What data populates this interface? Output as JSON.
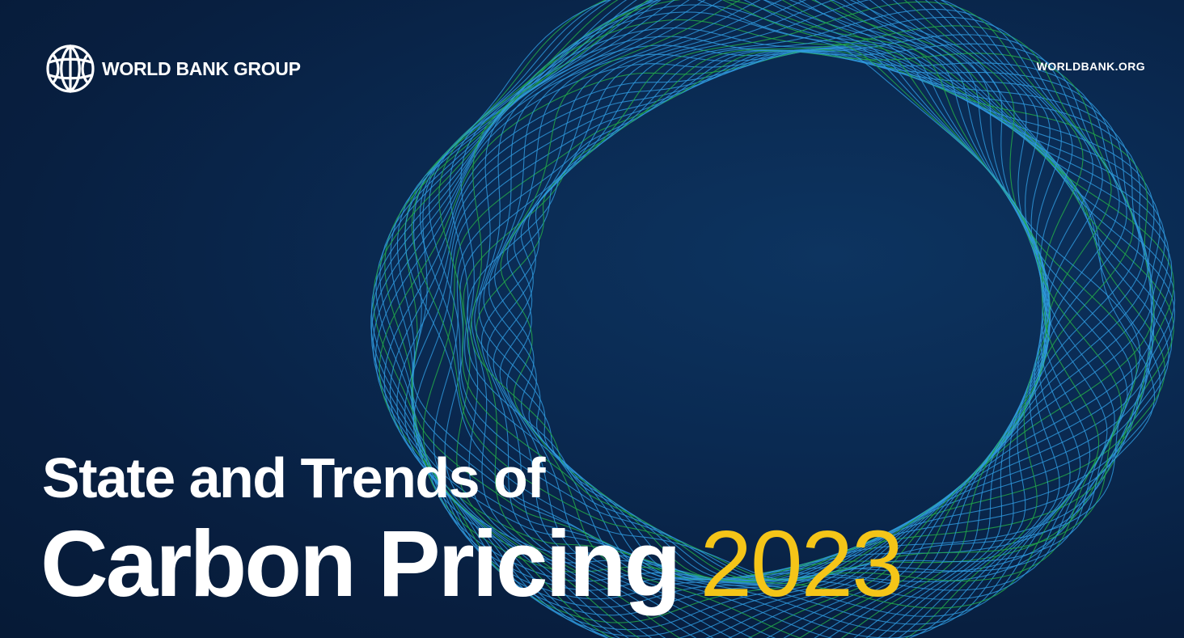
{
  "header": {
    "logo_text": "WORLD BANK GROUP",
    "logo_icon": "globe-icon",
    "site_url": "WORLDBANK.ORG"
  },
  "title": {
    "line1": "State and Trends of",
    "main": "Carbon Pricing",
    "year": "2023"
  },
  "colors": {
    "background": "#0b2348",
    "swirl_blue": "#2f9be0",
    "swirl_green": "#22a84a",
    "year_accent": "#f5c518",
    "text": "#ffffff"
  }
}
